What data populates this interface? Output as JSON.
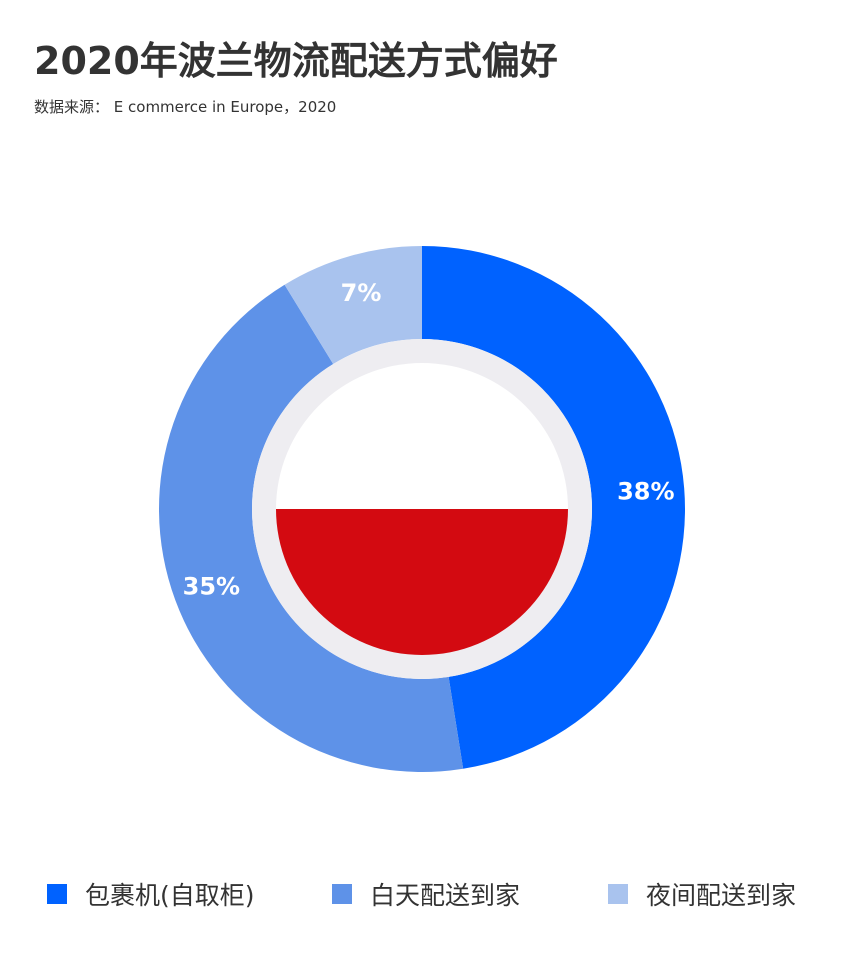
{
  "title": "2020年波兰物流配送方式偏好",
  "source": "数据来源： E commerce in Europe，2020",
  "chart_data": {
    "type": "pie",
    "title": "2020年波兰物流配送方式偏好",
    "categories": [
      "包裹机(自取柜)",
      "白天配送到家",
      "夜间配送到家"
    ],
    "values": [
      38,
      35,
      7
    ],
    "value_labels": [
      "38%",
      "35%",
      "7%"
    ],
    "colors": [
      "#0062FF",
      "#5E92E8",
      "#A9C3EE"
    ],
    "legend_position": "bottom"
  },
  "center_emblem": {
    "name": "poland-flag",
    "top_color": "#FFFFFF",
    "bottom_color": "#D30A11",
    "ring_color": "#EEEDF1"
  }
}
